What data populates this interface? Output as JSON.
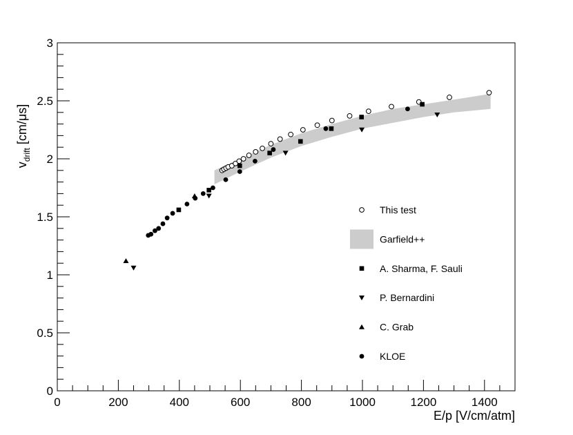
{
  "chart_data": {
    "type": "scatter",
    "title": "",
    "xlabel": "E/p [V/cm/atm]",
    "ylabel_main": "v",
    "ylabel_sub": "drift",
    "ylabel_unit": " [cm/μs]",
    "xlim": [
      0,
      1500
    ],
    "ylim": [
      0,
      3
    ],
    "x_ticks": [
      {
        "value": 0,
        "label": "0"
      },
      {
        "value": 200,
        "label": "200"
      },
      {
        "value": 400,
        "label": "400"
      },
      {
        "value": 600,
        "label": "600"
      },
      {
        "value": 800,
        "label": "800"
      },
      {
        "value": 1000,
        "label": "1000"
      },
      {
        "value": 1200,
        "label": "1200"
      },
      {
        "value": 1400,
        "label": "1400"
      }
    ],
    "y_ticks": [
      {
        "value": 0,
        "label": "0"
      },
      {
        "value": 0.5,
        "label": "0.5"
      },
      {
        "value": 1,
        "label": "1"
      },
      {
        "value": 1.5,
        "label": "1.5"
      },
      {
        "value": 2,
        "label": "2"
      },
      {
        "value": 2.5,
        "label": "2.5"
      },
      {
        "value": 3,
        "label": "3"
      }
    ],
    "grid": false,
    "legend_position": "right",
    "legend": [
      {
        "id": "this-test",
        "label": "This test",
        "marker": "open-circle"
      },
      {
        "id": "garfield",
        "label": "Garfield++",
        "marker": "band"
      },
      {
        "id": "sharma-sauli",
        "label": "A. Sharma, F. Sauli",
        "marker": "square"
      },
      {
        "id": "bernardini",
        "label": "P. Bernardini",
        "marker": "triangle-down"
      },
      {
        "id": "grab",
        "label": "C. Grab",
        "marker": "triangle-up"
      },
      {
        "id": "kloe",
        "label": "KLOE",
        "marker": "circle"
      }
    ],
    "band": {
      "name": "Garfield++",
      "color": "#cccccc",
      "x": [
        515,
        600,
        700,
        800,
        900,
        1000,
        1100,
        1200,
        1300,
        1420
      ],
      "lower": [
        1.78,
        1.89,
        2.01,
        2.11,
        2.19,
        2.26,
        2.31,
        2.36,
        2.4,
        2.43
      ],
      "upper": [
        1.9,
        2.0,
        2.12,
        2.22,
        2.3,
        2.37,
        2.43,
        2.47,
        2.51,
        2.56
      ]
    },
    "series": [
      {
        "id": "this-test",
        "name": "This test",
        "marker": "open-circle",
        "points": [
          [
            540,
            1.9
          ],
          [
            546,
            1.91
          ],
          [
            553,
            1.92
          ],
          [
            560,
            1.93
          ],
          [
            572,
            1.94
          ],
          [
            584,
            1.96
          ],
          [
            596,
            1.98
          ],
          [
            610,
            2.0
          ],
          [
            628,
            2.03
          ],
          [
            650,
            2.06
          ],
          [
            672,
            2.09
          ],
          [
            700,
            2.13
          ],
          [
            730,
            2.17
          ],
          [
            765,
            2.21
          ],
          [
            805,
            2.25
          ],
          [
            852,
            2.29
          ],
          [
            900,
            2.33
          ],
          [
            958,
            2.37
          ],
          [
            1020,
            2.41
          ],
          [
            1095,
            2.45
          ],
          [
            1185,
            2.49
          ],
          [
            1285,
            2.53
          ],
          [
            1415,
            2.57
          ]
        ]
      },
      {
        "id": "sharma-sauli",
        "name": "A. Sharma, F. Sauli",
        "marker": "square",
        "points": [
          [
            398,
            1.56
          ],
          [
            497,
            1.73
          ],
          [
            598,
            1.94
          ],
          [
            696,
            2.05
          ],
          [
            797,
            2.15
          ],
          [
            898,
            2.26
          ],
          [
            997,
            2.36
          ],
          [
            1196,
            2.47
          ]
        ]
      },
      {
        "id": "bernardini",
        "name": "P. Bernardini",
        "marker": "triangle-down",
        "points": [
          [
            250,
            1.06
          ],
          [
            497,
            1.68
          ],
          [
            748,
            2.05
          ],
          [
            998,
            2.25
          ],
          [
            1245,
            2.38
          ]
        ]
      },
      {
        "id": "grab",
        "name": "C. Grab",
        "marker": "triangle-up",
        "points": [
          [
            225,
            1.12
          ],
          [
            450,
            1.68
          ]
        ]
      },
      {
        "id": "kloe",
        "name": "KLOE",
        "marker": "circle",
        "points": [
          [
            298,
            1.34
          ],
          [
            307,
            1.35
          ],
          [
            320,
            1.38
          ],
          [
            332,
            1.4
          ],
          [
            346,
            1.44
          ],
          [
            360,
            1.49
          ],
          [
            378,
            1.53
          ],
          [
            425,
            1.61
          ],
          [
            452,
            1.66
          ],
          [
            478,
            1.7
          ],
          [
            510,
            1.75
          ],
          [
            552,
            1.82
          ],
          [
            598,
            1.89
          ],
          [
            648,
            1.98
          ],
          [
            708,
            2.08
          ],
          [
            880,
            2.26
          ],
          [
            1148,
            2.43
          ]
        ]
      }
    ]
  }
}
